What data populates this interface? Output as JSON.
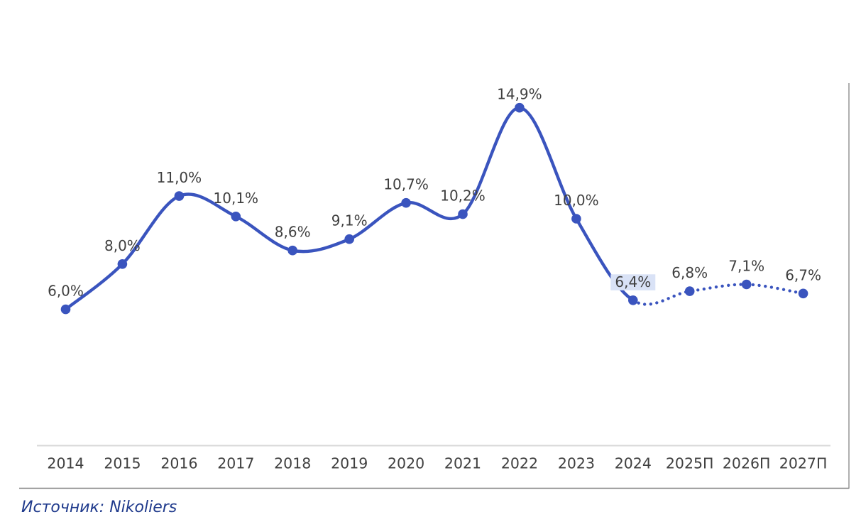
{
  "chart_data": {
    "type": "line",
    "title": "",
    "xlabel": "",
    "ylabel": "",
    "categories": [
      "2014",
      "2015",
      "2016",
      "2017",
      "2018",
      "2019",
      "2020",
      "2021",
      "2022",
      "2023",
      "2024",
      "2025П",
      "2026П",
      "2027П"
    ],
    "values": [
      6.0,
      8.0,
      11.0,
      10.1,
      8.6,
      9.1,
      10.7,
      10.2,
      14.9,
      10.0,
      6.4,
      6.8,
      7.1,
      6.7
    ],
    "point_labels": [
      "6,0%",
      "8,0%",
      "11,0%",
      "10,1%",
      "8,6%",
      "9,1%",
      "10,7%",
      "10,2%",
      "14,9%",
      "10,0%",
      "6,4%",
      "6,8%",
      "7,1%",
      "6,7%"
    ],
    "forecast_start_index": 10,
    "highlighted_point_index": 10,
    "ylim": [
      0,
      16
    ],
    "grid": false,
    "legend": "none",
    "line_style_main": "solid",
    "line_style_forecast": "dotted",
    "colors": {
      "line": "#3A54BE",
      "marker": "#3A54BE",
      "point_label_text": "#3F3F3F",
      "highlight_background": "#D9E2F6",
      "axis_line": "#D9D9D9",
      "tick_label": "#404040",
      "frame_border": "#9B9B9B",
      "footer_rule": "#808080"
    }
  },
  "footer": {
    "source_text": "Источник: Nikoliers",
    "source_color": "#1F3A8C"
  }
}
